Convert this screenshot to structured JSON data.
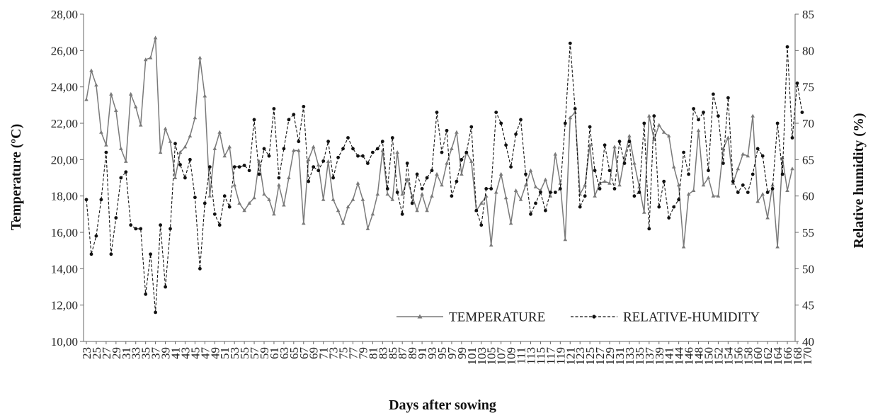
{
  "chart_data": {
    "type": "line",
    "xlabel": "Days after sowing",
    "ylabel_left": "Temperature (ºC)",
    "ylabel_right": "Relative humidity (%)",
    "ylim_left": [
      10,
      28
    ],
    "ylim_right": [
      40,
      85
    ],
    "yticks_left": [
      "10,00",
      "12,00",
      "14,00",
      "16,00",
      "18,00",
      "20,00",
      "22,00",
      "24,00",
      "26,00",
      "28,00"
    ],
    "yticks_right": [
      "40",
      "45",
      "50",
      "55",
      "60",
      "65",
      "70",
      "75",
      "80",
      "85"
    ],
    "grid": false,
    "legend_position": "bottom-right",
    "x_tick_labels": [
      "23",
      "25",
      "27",
      "29",
      "31",
      "33",
      "35",
      "37",
      "39",
      "41",
      "43",
      "45",
      "47",
      "49",
      "51",
      "53",
      "55",
      "57",
      "59",
      "61",
      "63",
      "65",
      "67",
      "69",
      "71",
      "73",
      "75",
      "77",
      "79",
      "81",
      "83",
      "85",
      "87",
      "89",
      "91",
      "93",
      "95",
      "97",
      "99",
      "101",
      "103",
      "105",
      "107",
      "109",
      "111",
      "113",
      "115",
      "117",
      "119",
      "121",
      "123",
      "125",
      "127",
      "129",
      "131",
      "133",
      "135",
      "137",
      "139",
      "141",
      "144",
      "146",
      "148",
      "150",
      "152",
      "154",
      "156",
      "158",
      "160",
      "162",
      "164",
      "166",
      "168",
      "170"
    ],
    "series": [
      {
        "name": "TEMPERATURE",
        "axis": "left",
        "color": "#7a7a7a",
        "dash": "solid",
        "marker": "triangle",
        "values": [
          23.3,
          24.9,
          24.1,
          21.5,
          20.8,
          23.6,
          22.7,
          20.6,
          19.9,
          23.6,
          22.9,
          21.9,
          25.5,
          25.6,
          26.7,
          20.4,
          21.7,
          21.0,
          19.0,
          20.4,
          20.7,
          21.3,
          22.3,
          25.6,
          23.5,
          18.0,
          20.6,
          21.5,
          20.2,
          20.7,
          18.6,
          17.6,
          17.2,
          17.6,
          17.9,
          19.9,
          18.1,
          17.8,
          17.0,
          18.6,
          17.5,
          19.0,
          20.5,
          20.5,
          16.5,
          20.0,
          20.7,
          19.7,
          17.8,
          19.9,
          17.8,
          17.2,
          16.5,
          17.4,
          17.8,
          18.7,
          17.8,
          16.2,
          17.0,
          18.1,
          20.5,
          18.1,
          17.8,
          20.4,
          18.1,
          18.9,
          18.0,
          17.2,
          18.1,
          17.2,
          18.0,
          19.2,
          18.6,
          19.8,
          20.6,
          21.5,
          19.2,
          20.4,
          19.9,
          17.2,
          17.6,
          18.0,
          15.3,
          18.2,
          19.2,
          17.9,
          16.5,
          18.3,
          17.8,
          18.6,
          19.4,
          18.5,
          18.3,
          18.9,
          18.0,
          20.3,
          18.7,
          15.6,
          22.3,
          22.6,
          18.1,
          18.6,
          20.8,
          18.0,
          18.7,
          18.8,
          18.7,
          20.7,
          18.6,
          20.1,
          21.3,
          19.8,
          18.5,
          17.1,
          22.4,
          21.1,
          21.9,
          21.5,
          21.3,
          19.6,
          18.6,
          15.2,
          18.1,
          18.3,
          21.6,
          18.6,
          19.0,
          18.0,
          18.0,
          20.6,
          21.2,
          18.7,
          19.5,
          20.3,
          20.2,
          22.4,
          17.7,
          18.1,
          16.8,
          18.6,
          15.2,
          20.1,
          18.3,
          19.5
        ]
      },
      {
        "name": "RELATIVE-HUMIDITY",
        "axis": "right",
        "color": "#111111",
        "dash": "dashed",
        "marker": "circle",
        "values": [
          59.5,
          52.0,
          54.5,
          59.5,
          66.0,
          52.0,
          57.0,
          62.5,
          63.3,
          56.0,
          55.5,
          55.5,
          46.5,
          52.0,
          44.0,
          56.0,
          47.5,
          55.5,
          67.2,
          64.3,
          62.5,
          65.0,
          59.8,
          50.0,
          59.0,
          64.0,
          57.5,
          56.0,
          60.0,
          58.5,
          64.0,
          64.0,
          64.2,
          63.5,
          70.5,
          63.0,
          66.5,
          65.5,
          72.0,
          62.5,
          66.5,
          70.5,
          71.2,
          67.5,
          72.3,
          62.0,
          64.0,
          63.5,
          64.8,
          67.5,
          62.5,
          65.3,
          66.5,
          68.0,
          66.5,
          65.5,
          65.5,
          64.5,
          66.0,
          66.5,
          67.5,
          61.0,
          68.0,
          60.5,
          57.5,
          64.5,
          59.0,
          63.0,
          61.0,
          62.5,
          63.5,
          71.5,
          66.0,
          69.0,
          60.0,
          62.0,
          65.0,
          66.0,
          69.5,
          58.0,
          56.0,
          61.0,
          61.0,
          71.5,
          70.0,
          67.0,
          64.0,
          68.5,
          70.5,
          63.0,
          57.5,
          59.0,
          60.5,
          58.0,
          60.5,
          60.5,
          61.0,
          70.0,
          81.0,
          72.0,
          58.5,
          60.0,
          69.5,
          63.5,
          61.0,
          67.0,
          63.5,
          61.0,
          67.5,
          64.5,
          67.5,
          60.0,
          60.5,
          70.0,
          55.5,
          71.0,
          58.5,
          62.0,
          57.0,
          58.5,
          59.5,
          66.0,
          63.0,
          72.0,
          70.5,
          71.5,
          63.5,
          74.0,
          71.0,
          64.5,
          73.5,
          62.0,
          60.5,
          61.5,
          60.5,
          63.0,
          66.5,
          65.5,
          60.5,
          61.0,
          70.0,
          63.0,
          80.5,
          68.0,
          75.5,
          71.5
        ]
      }
    ]
  }
}
